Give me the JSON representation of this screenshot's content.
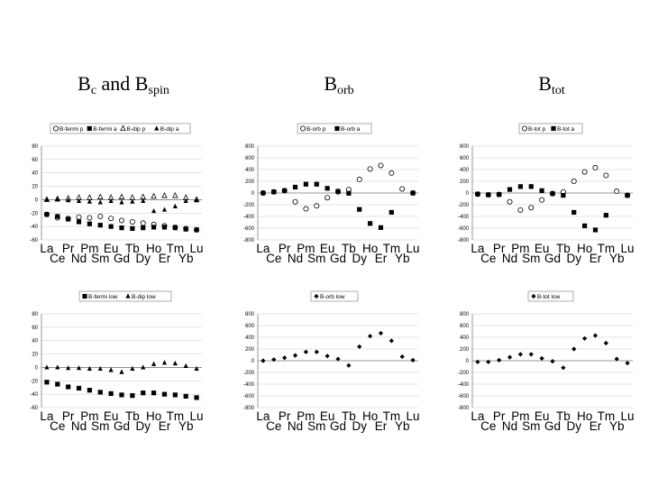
{
  "titles": [
    {
      "main": "B",
      "sub": "c",
      "rest": " and B",
      "sub2": "spin"
    },
    {
      "main": "B",
      "sub": "orb",
      "rest": "",
      "sub2": ""
    },
    {
      "main": "B",
      "sub": "tot",
      "rest": "",
      "sub2": ""
    }
  ],
  "category_rows": {
    "odd": [
      "La",
      "Pr",
      "Pm",
      "Eu",
      "Tb",
      "Ho",
      "Tm",
      "Lu"
    ],
    "even": [
      "Ce",
      "Nd",
      "Sm",
      "Gd",
      "Dy",
      "Er",
      "Yb"
    ]
  },
  "chart_data": [
    {
      "type": "scatter",
      "categories": [
        "La",
        "Ce",
        "Pr",
        "Nd",
        "Pm",
        "Sm",
        "Eu",
        "Gd",
        "Tb",
        "Dy",
        "Ho",
        "Er",
        "Tm",
        "Yb",
        "Lu"
      ],
      "ylim": [
        -60,
        80
      ],
      "yticks": [
        -60,
        -40,
        -20,
        0,
        20,
        40,
        60,
        80
      ],
      "legend": "top",
      "series": [
        {
          "name": "B-fermi p",
          "marker": "circle-open",
          "values": [
            -22,
            -27,
            -28,
            -26,
            -27,
            -25,
            -28,
            -31,
            -33,
            -35,
            -37,
            -39,
            -41,
            -43,
            -45
          ]
        },
        {
          "name": "B-fermi a",
          "marker": "square",
          "values": [
            -22,
            -25,
            -29,
            -33,
            -36,
            -38,
            -40,
            -42,
            -43,
            -42,
            -41,
            -41,
            -42,
            -44,
            -45
          ]
        },
        {
          "name": "B-dip p",
          "marker": "triangle-open",
          "values": [
            0,
            1,
            2,
            3,
            3,
            4,
            3,
            4,
            3,
            4,
            5,
            6,
            6,
            3,
            0
          ]
        },
        {
          "name": "B-dip a",
          "marker": "triangle",
          "values": [
            0,
            0,
            -1,
            -2,
            -3,
            -4,
            -2,
            -4,
            -3,
            -2,
            -17,
            -15,
            -10,
            -2,
            -1
          ]
        }
      ]
    },
    {
      "type": "scatter",
      "categories": [
        "La",
        "Ce",
        "Pr",
        "Nd",
        "Pm",
        "Sm",
        "Eu",
        "Gd",
        "Tb",
        "Dy",
        "Ho",
        "Er",
        "Tm",
        "Yb",
        "Lu"
      ],
      "ylim": [
        -800,
        800
      ],
      "yticks": [
        -800,
        -600,
        -400,
        -200,
        0,
        200,
        400,
        600,
        800
      ],
      "legend": "top",
      "series": [
        {
          "name": "B-orb p",
          "marker": "circle-open",
          "values": [
            0,
            20,
            40,
            -150,
            -270,
            -220,
            -80,
            20,
            60,
            230,
            410,
            470,
            340,
            70,
            0
          ]
        },
        {
          "name": "B-orb a",
          "marker": "square",
          "values": [
            0,
            20,
            40,
            100,
            150,
            150,
            80,
            30,
            -5,
            -280,
            -520,
            -590,
            -330,
            null,
            0
          ]
        }
      ]
    },
    {
      "type": "scatter",
      "categories": [
        "La",
        "Ce",
        "Pr",
        "Nd",
        "Pm",
        "Sm",
        "Eu",
        "Gd",
        "Tb",
        "Dy",
        "Ho",
        "Er",
        "Tm",
        "Yb",
        "Lu"
      ],
      "ylim": [
        -800,
        800
      ],
      "yticks": [
        -800,
        -600,
        -400,
        -200,
        0,
        200,
        400,
        600,
        800
      ],
      "legend": "top",
      "series": [
        {
          "name": "B-tot p",
          "marker": "circle-open",
          "values": [
            -20,
            -30,
            -25,
            -150,
            -290,
            -250,
            -120,
            -10,
            20,
            200,
            360,
            430,
            300,
            30,
            -40
          ]
        },
        {
          "name": "B-tot a",
          "marker": "square",
          "values": [
            -20,
            -30,
            -25,
            60,
            110,
            110,
            40,
            -10,
            -40,
            -330,
            -560,
            -630,
            -380,
            null,
            -40
          ]
        }
      ]
    },
    {
      "type": "scatter",
      "categories": [
        "La",
        "Ce",
        "Pr",
        "Nd",
        "Pm",
        "Sm",
        "Eu",
        "Gd",
        "Tb",
        "Dy",
        "Ho",
        "Er",
        "Tm",
        "Yb",
        "Lu"
      ],
      "ylim": [
        -60,
        80
      ],
      "yticks": [
        -60,
        -40,
        -20,
        0,
        20,
        40,
        60,
        80
      ],
      "legend": "top",
      "series": [
        {
          "name": "B-fermi low",
          "marker": "square",
          "values": [
            -22,
            -25,
            -29,
            -31,
            -34,
            -37,
            -39,
            -41,
            -42,
            -38,
            -38,
            -40,
            -41,
            -43,
            -45
          ]
        },
        {
          "name": "B-dip low",
          "marker": "triangle",
          "values": [
            0,
            0,
            -1,
            -1,
            -2,
            -2,
            -4,
            -7,
            -2,
            0,
            5,
            7,
            6,
            2,
            -2
          ]
        }
      ]
    },
    {
      "type": "scatter",
      "categories": [
        "La",
        "Ce",
        "Pr",
        "Nd",
        "Pm",
        "Sm",
        "Eu",
        "Gd",
        "Tb",
        "Dy",
        "Ho",
        "Er",
        "Tm",
        "Yb",
        "Lu"
      ],
      "ylim": [
        -800,
        800
      ],
      "yticks": [
        -800,
        -600,
        -400,
        -200,
        0,
        200,
        400,
        600,
        800
      ],
      "legend": "top",
      "series": [
        {
          "name": "B-orb low",
          "marker": "diamond",
          "values": [
            0,
            20,
            50,
            90,
            150,
            150,
            80,
            30,
            -80,
            240,
            420,
            470,
            340,
            70,
            10
          ]
        }
      ]
    },
    {
      "type": "scatter",
      "categories": [
        "La",
        "Ce",
        "Pr",
        "Nd",
        "Pm",
        "Sm",
        "Eu",
        "Gd",
        "Tb",
        "Dy",
        "Ho",
        "Er",
        "Tm",
        "Yb",
        "Lu"
      ],
      "ylim": [
        -800,
        800
      ],
      "yticks": [
        -800,
        -600,
        -400,
        -200,
        0,
        200,
        400,
        600,
        800
      ],
      "legend": "top",
      "series": [
        {
          "name": "B-tot low",
          "marker": "diamond",
          "values": [
            -20,
            -20,
            10,
            60,
            110,
            110,
            40,
            -10,
            -120,
            200,
            380,
            430,
            300,
            30,
            -40
          ]
        }
      ]
    }
  ],
  "colors": {
    "marker": "#000000",
    "grid": "#c8c8c8",
    "axis": "#808080"
  }
}
